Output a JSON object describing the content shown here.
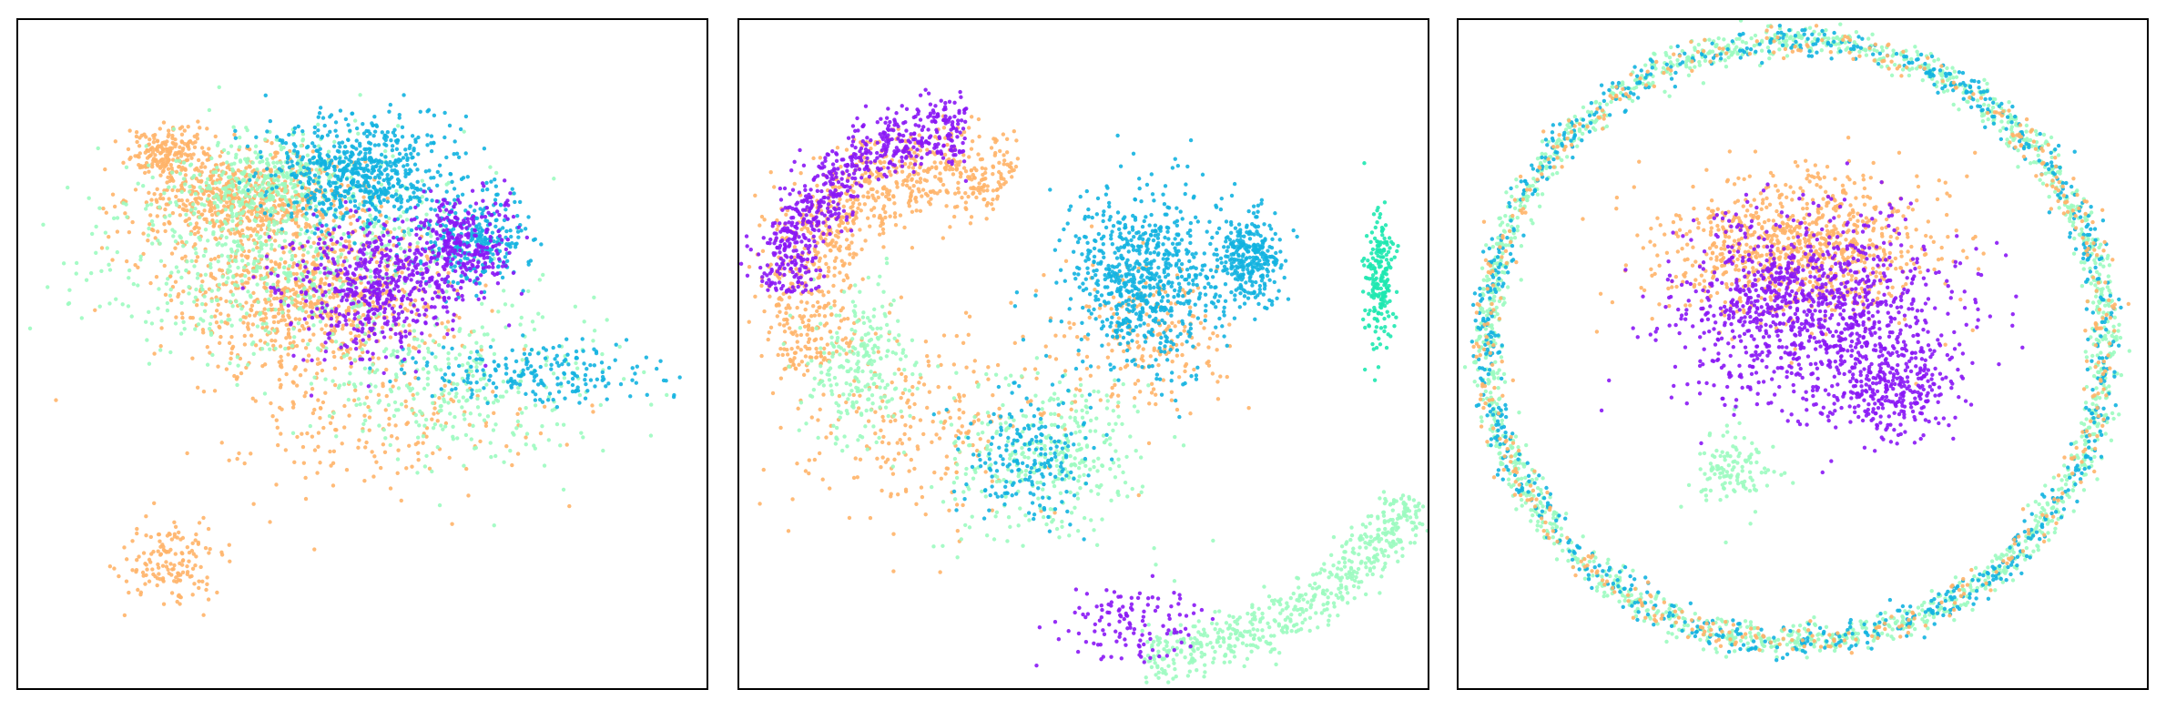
{
  "chart_data": [
    {
      "type": "scatter",
      "title": "",
      "xlabel": "",
      "ylabel": "",
      "xlim": [
        0,
        1
      ],
      "ylim": [
        0,
        1
      ],
      "axis_ticks": false,
      "grid": false,
      "legend": "none",
      "series": [
        {
          "color": "#ffb469",
          "clusters": [
            {
              "cx": 0.33,
              "cy": 0.73,
              "sx": 0.08,
              "sy": 0.035,
              "n": 650
            },
            {
              "cx": 0.43,
              "cy": 0.59,
              "sx": 0.1,
              "sy": 0.055,
              "n": 750
            },
            {
              "cx": 0.22,
              "cy": 0.8,
              "sx": 0.03,
              "sy": 0.02,
              "n": 200
            },
            {
              "cx": 0.22,
              "cy": 0.19,
              "sx": 0.035,
              "sy": 0.03,
              "n": 150
            },
            {
              "cx": 0.5,
              "cy": 0.4,
              "sx": 0.12,
              "sy": 0.06,
              "n": 200
            }
          ]
        },
        {
          "color": "#9cfbc0",
          "clusters": [
            {
              "cx": 0.38,
              "cy": 0.65,
              "sx": 0.13,
              "sy": 0.08,
              "n": 700
            },
            {
              "cx": 0.65,
              "cy": 0.45,
              "sx": 0.1,
              "sy": 0.06,
              "n": 300
            },
            {
              "cx": 0.35,
              "cy": 0.76,
              "sx": 0.06,
              "sy": 0.03,
              "n": 250
            }
          ]
        },
        {
          "color": "#12b2e0",
          "clusters": [
            {
              "cx": 0.5,
              "cy": 0.77,
              "sx": 0.07,
              "sy": 0.04,
              "n": 650
            },
            {
              "cx": 0.66,
              "cy": 0.67,
              "sx": 0.04,
              "sy": 0.035,
              "n": 280
            },
            {
              "cx": 0.76,
              "cy": 0.47,
              "sx": 0.08,
              "sy": 0.025,
              "n": 200
            }
          ]
        },
        {
          "color": "#8a17f5",
          "clusters": [
            {
              "cx": 0.52,
              "cy": 0.6,
              "sx": 0.065,
              "sy": 0.05,
              "n": 550
            },
            {
              "cx": 0.65,
              "cy": 0.67,
              "sx": 0.035,
              "sy": 0.035,
              "n": 250
            }
          ]
        }
      ]
    },
    {
      "type": "scatter",
      "title": "",
      "xlabel": "",
      "ylabel": "",
      "xlim": [
        0,
        1
      ],
      "ylim": [
        0,
        1
      ],
      "axis_ticks": false,
      "grid": false,
      "legend": "none",
      "series": [
        {
          "color": "#ffb469",
          "clusters": [
            {
              "arc": true,
              "cx": 0.29,
              "cy": 0.58,
              "r": 0.2,
              "a0": 60,
              "a1": 210,
              "w": 0.035,
              "n": 800
            },
            {
              "cx": 0.26,
              "cy": 0.4,
              "sx": 0.1,
              "sy": 0.08,
              "n": 250
            },
            {
              "cx": 0.59,
              "cy": 0.52,
              "sx": 0.06,
              "sy": 0.06,
              "n": 200
            }
          ]
        },
        {
          "color": "#9cfbc0",
          "clusters": [
            {
              "arc": true,
              "cx": 0.57,
              "cy": 0.52,
              "r": 0.47,
              "a0": 272,
              "a1": 330,
              "w": 0.02,
              "n": 550
            },
            {
              "cx": 0.45,
              "cy": 0.34,
              "sx": 0.07,
              "sy": 0.06,
              "n": 350
            },
            {
              "cx": 0.18,
              "cy": 0.48,
              "sx": 0.04,
              "sy": 0.06,
              "n": 250
            }
          ]
        },
        {
          "color": "#12b2e0",
          "clusters": [
            {
              "cx": 0.59,
              "cy": 0.61,
              "sx": 0.055,
              "sy": 0.065,
              "n": 700
            },
            {
              "cx": 0.74,
              "cy": 0.64,
              "sx": 0.025,
              "sy": 0.035,
              "n": 300
            },
            {
              "cx": 0.42,
              "cy": 0.34,
              "sx": 0.05,
              "sy": 0.05,
              "n": 200
            }
          ]
        },
        {
          "color": "#1ee8b0",
          "clusters": [
            {
              "cx": 0.93,
              "cy": 0.61,
              "sx": 0.01,
              "sy": 0.05,
              "n": 200
            }
          ]
        },
        {
          "color": "#8a17f5",
          "clusters": [
            {
              "arc": true,
              "cx": 0.33,
              "cy": 0.57,
              "r": 0.27,
              "a0": 90,
              "a1": 175,
              "w": 0.025,
              "n": 650
            },
            {
              "cx": 0.57,
              "cy": 0.1,
              "sx": 0.05,
              "sy": 0.03,
              "n": 120
            }
          ]
        }
      ]
    },
    {
      "type": "scatter",
      "title": "",
      "xlabel": "",
      "ylabel": "",
      "xlim": [
        0,
        1
      ],
      "ylim": [
        0,
        1
      ],
      "axis_ticks": false,
      "grid": false,
      "legend": "none",
      "series": [
        {
          "color": "#9cfbc0",
          "clusters": [
            {
              "ring": true,
              "cx": 0.49,
              "cy": 0.52,
              "r": 0.45,
              "w": 0.012,
              "n": 1700
            },
            {
              "cx": 0.4,
              "cy": 0.33,
              "sx": 0.03,
              "sy": 0.03,
              "n": 120
            }
          ]
        },
        {
          "color": "#12b2e0",
          "clusters": [
            {
              "ring": true,
              "cx": 0.49,
              "cy": 0.52,
              "r": 0.45,
              "w": 0.012,
              "n": 900
            }
          ]
        },
        {
          "color": "#ffb469",
          "clusters": [
            {
              "cx": 0.49,
              "cy": 0.66,
              "sx": 0.1,
              "sy": 0.055,
              "n": 900
            },
            {
              "ring": true,
              "cx": 0.49,
              "cy": 0.52,
              "r": 0.45,
              "w": 0.012,
              "n": 500
            }
          ]
        },
        {
          "color": "#8a17f5",
          "clusters": [
            {
              "cx": 0.51,
              "cy": 0.57,
              "sx": 0.1,
              "sy": 0.07,
              "n": 1100
            },
            {
              "cx": 0.63,
              "cy": 0.45,
              "sx": 0.05,
              "sy": 0.04,
              "n": 300
            }
          ]
        }
      ]
    }
  ]
}
